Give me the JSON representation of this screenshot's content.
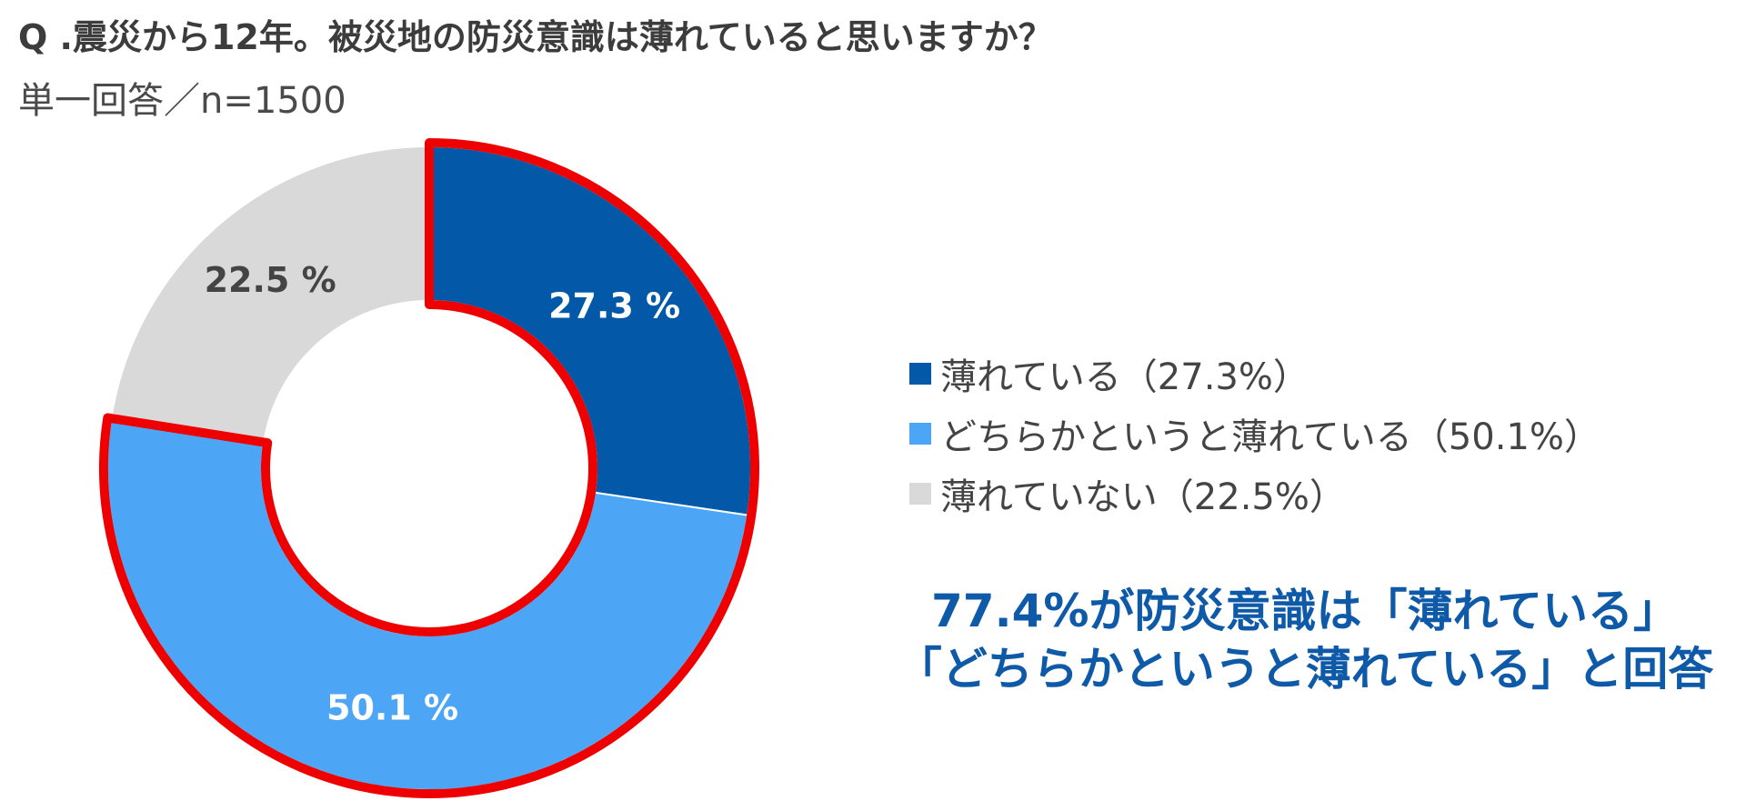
{
  "header": {
    "title": "Q .震災から12年。被災地の防災意識は薄れていると思いますか？",
    "subtitle": "単一回答／n=1500"
  },
  "chart_data": {
    "type": "pie",
    "donut": true,
    "categories": [
      "薄れている",
      "どちらかというと薄れている",
      "薄れていない"
    ],
    "values": [
      27.3,
      50.1,
      22.5
    ],
    "slice_labels": [
      "27.3 %",
      "50.1 %",
      "22.5 %"
    ],
    "colors": [
      "#0359a8",
      "#4da6f5",
      "#d9d9d9"
    ],
    "label_colors": [
      "#ffffff",
      "#ffffff",
      "#444444"
    ],
    "highlight_color": "#ee0000",
    "highlighted_categories": [
      "薄れている",
      "どちらかというと薄れている"
    ],
    "legend": {
      "position": "right",
      "items": [
        "薄れている（27.3%）",
        "どちらかというと薄れている（50.1%）",
        "薄れていない（22.5%）"
      ]
    }
  },
  "callout": {
    "line1": "77.4%が防災意識は「薄れている」",
    "line2": "「どちらかというと薄れている」と回答"
  }
}
